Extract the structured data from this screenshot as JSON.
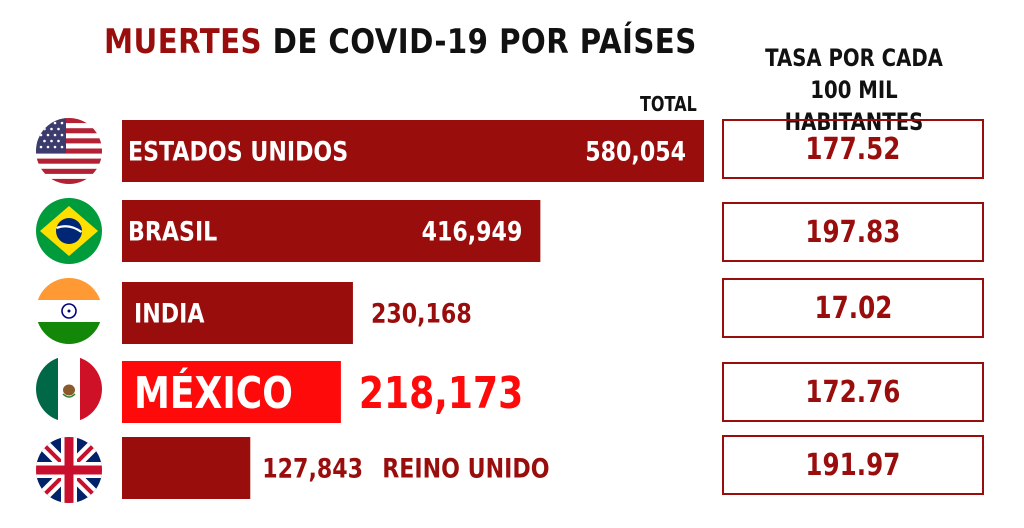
{
  "title": {
    "accent": "MUERTES",
    "rest": " DE COVID-19 POR PAÍSES"
  },
  "total_label": "TOTAL",
  "rate_header": {
    "line1": "TASA POR CADA",
    "line2": "100 MIL HABITANTES"
  },
  "colors": {
    "bar": "#9a0d0d",
    "highlight": "#ff0a0a",
    "text_dark": "#111111",
    "text_light": "#ffffff"
  },
  "chart_data": {
    "type": "bar",
    "orientation": "horizontal",
    "categories": [
      "ESTADOS UNIDOS",
      "BRASIL",
      "INDIA",
      "MÉXICO",
      "REINO UNIDO"
    ],
    "values": [
      580054,
      416949,
      230168,
      218173,
      127843
    ],
    "value_labels": [
      "580,054",
      "416,949",
      "230,168",
      "218,173",
      "127,843"
    ],
    "highlight_index": 3,
    "rates": [
      "177.52",
      "197.83",
      "17.02",
      "172.76",
      "191.97"
    ],
    "flags": [
      "usa-flag-icon",
      "brazil-flag-icon",
      "india-flag-icon",
      "mexico-flag-icon",
      "uk-flag-icon"
    ]
  }
}
